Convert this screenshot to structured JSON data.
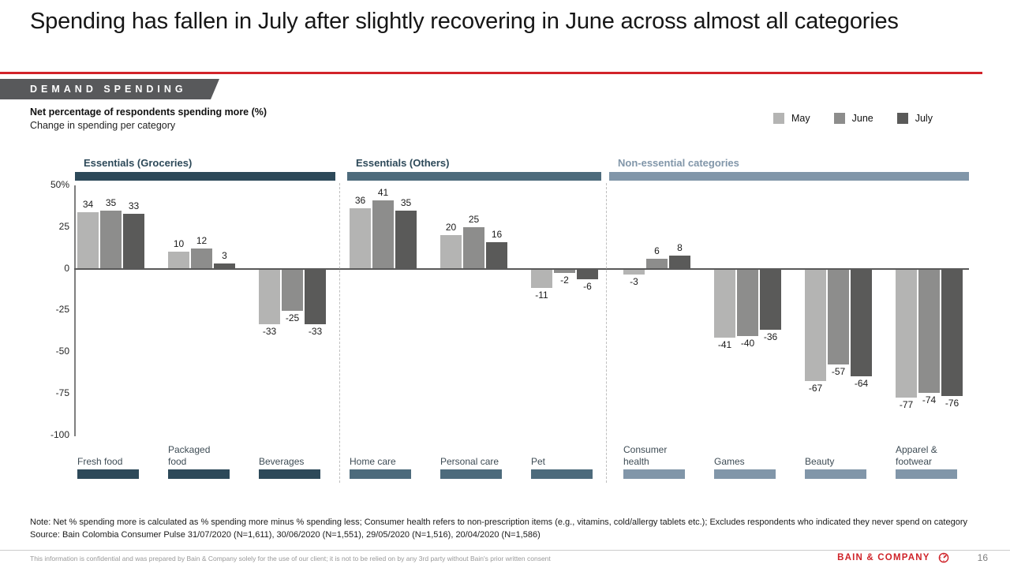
{
  "slide": {
    "title": "Spending has fallen in July after slightly recovering in June across almost all categories",
    "kicker": "DEMAND SPENDING",
    "subtitle_bold": "Net percentage of respondents spending more (%)",
    "subtitle": "Change in spending per category",
    "note": "Note: Net % spending more is calculated as % spending more minus % spending less; Consumer health refers to non-prescription items (e.g., vitamins, cold/allergy tablets etc.); Excludes respondents who indicated they never spend on category",
    "source": "Source: Bain Colombia Consumer Pulse 31/07/2020 (N=1,611), 30/06/2020 (N=1,551), 29/05/2020 (N=1,516), 20/04/2020 (N=1,586)",
    "disclaimer": "This information is confidential and was prepared by Bain & Company solely for the use of our client; it is not to be relied on by any 3rd party without Bain's prior written consent",
    "brand": "BAIN & COMPANY",
    "page_number": "16"
  },
  "legend": [
    {
      "label": "May",
      "color": "#b4b4b3"
    },
    {
      "label": "June",
      "color": "#8d8d8c"
    },
    {
      "label": "July",
      "color": "#5a5a59"
    }
  ],
  "chart_data": {
    "type": "bar",
    "title": "Net percentage of respondents spending more (%)",
    "subtitle": "Change in spending per category",
    "ylabel": "Net % of respondents spending more",
    "ylim": [
      -100,
      50
    ],
    "ytick_values": [
      50,
      25,
      0,
      -25,
      -50,
      -75,
      -100
    ],
    "ytick_labels": [
      "50%",
      "25",
      "0",
      "-25",
      "-50",
      "-75",
      "-100"
    ],
    "grid": false,
    "legend_position": "top-right",
    "series": [
      "May",
      "June",
      "July"
    ],
    "groups": [
      {
        "label": "Essentials (Groceries)",
        "label_color": "#2d4959",
        "bar_color": "#2d4959",
        "categories": [
          {
            "label": "Fresh food",
            "values": [
              34,
              35,
              33
            ]
          },
          {
            "label": "Packaged food",
            "values": [
              10,
              12,
              3
            ]
          },
          {
            "label": "Beverages",
            "values": [
              -33,
              -25,
              -33
            ]
          }
        ]
      },
      {
        "label": "Essentials (Others)",
        "label_color": "#2d4959",
        "bar_color": "#4d6b7c",
        "categories": [
          {
            "label": "Home care",
            "values": [
              36,
              41,
              35
            ]
          },
          {
            "label": "Personal care",
            "values": [
              20,
              25,
              16
            ]
          },
          {
            "label": "Pet",
            "values": [
              -11,
              -2,
              -6
            ]
          }
        ]
      },
      {
        "label": "Non-essential categories",
        "label_color": "#8196a9",
        "bar_color": "#8196a9",
        "categories": [
          {
            "label": "Consumer health",
            "values": [
              -3,
              6,
              8
            ]
          },
          {
            "label": "Games",
            "values": [
              -41,
              -40,
              -36
            ]
          },
          {
            "label": "Beauty",
            "values": [
              -67,
              -57,
              -64
            ]
          },
          {
            "label": "Apparel & footwear",
            "values": [
              -77,
              -74,
              -76
            ]
          }
        ]
      }
    ]
  }
}
